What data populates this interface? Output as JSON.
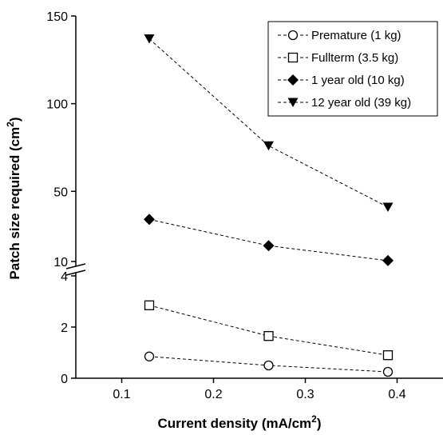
{
  "chart_data": {
    "type": "line",
    "xlabel": "Current density (mA/cm",
    "xlabel_sup": "2",
    "xlabel_end": ")",
    "ylabel": "Patch size required (cm",
    "ylabel_sup": "2",
    "ylabel_end": ")",
    "x": [
      0.13,
      0.26,
      0.39
    ],
    "xlim": [
      0.05,
      0.45
    ],
    "x_ticks": [
      "0.1",
      "0.2",
      "0.3",
      "0.4"
    ],
    "y_axis_break": true,
    "ylim_lower": [
      0,
      4
    ],
    "ylim_upper": [
      10,
      150
    ],
    "y_ticks_lower": [
      "0",
      "2",
      "4"
    ],
    "y_ticks_upper": [
      "10",
      "50",
      "100",
      "150"
    ],
    "grid": false,
    "legend_position": "top-right",
    "series": [
      {
        "name": "Premature (1 kg)",
        "marker": "open-circle",
        "values": [
          0.85,
          0.5,
          0.25
        ]
      },
      {
        "name": "Fullterm (3.5 kg)",
        "marker": "open-square",
        "values": [
          2.85,
          1.65,
          0.9
        ]
      },
      {
        "name": "1 year old (10 kg)",
        "marker": "filled-diamond",
        "values": [
          34,
          19,
          10.5
        ]
      },
      {
        "name": "12 year old (39 kg)",
        "marker": "filled-triangle-down",
        "values": [
          137,
          76,
          41
        ]
      }
    ]
  }
}
